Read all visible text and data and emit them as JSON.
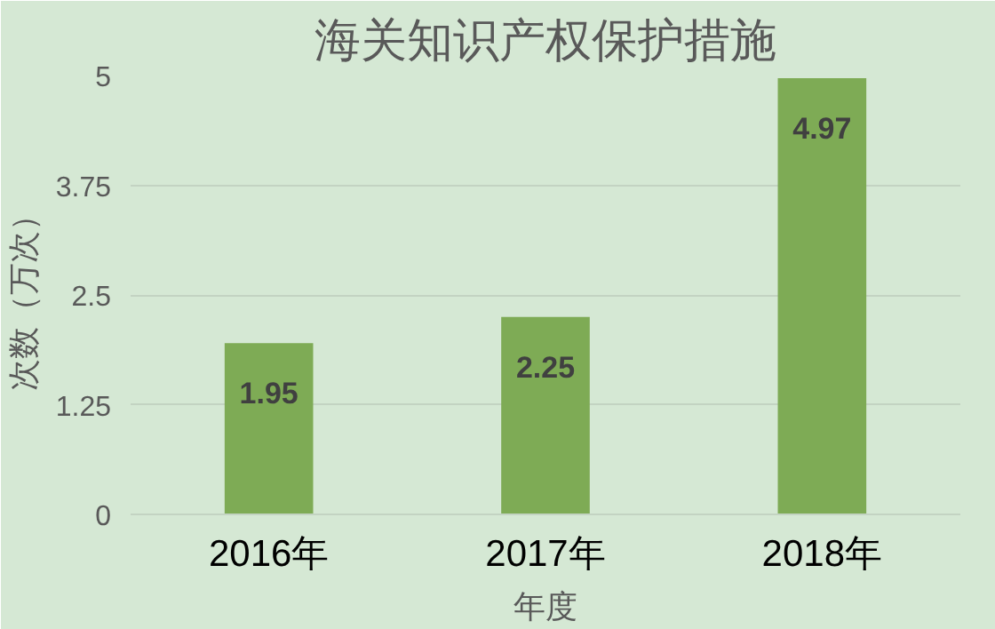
{
  "chart_data": {
    "type": "bar",
    "title": "海关知识产权保护措施",
    "xlabel": "年度",
    "ylabel": "次数（万次）",
    "categories": [
      "2016年",
      "2017年",
      "2018年"
    ],
    "values": [
      1.95,
      2.25,
      4.97
    ],
    "color": "#7eab55",
    "ylim": [
      0,
      5
    ],
    "yticks": [
      0,
      1.25,
      2.5,
      3.75,
      5
    ],
    "grid": "y",
    "data_labels": true
  }
}
